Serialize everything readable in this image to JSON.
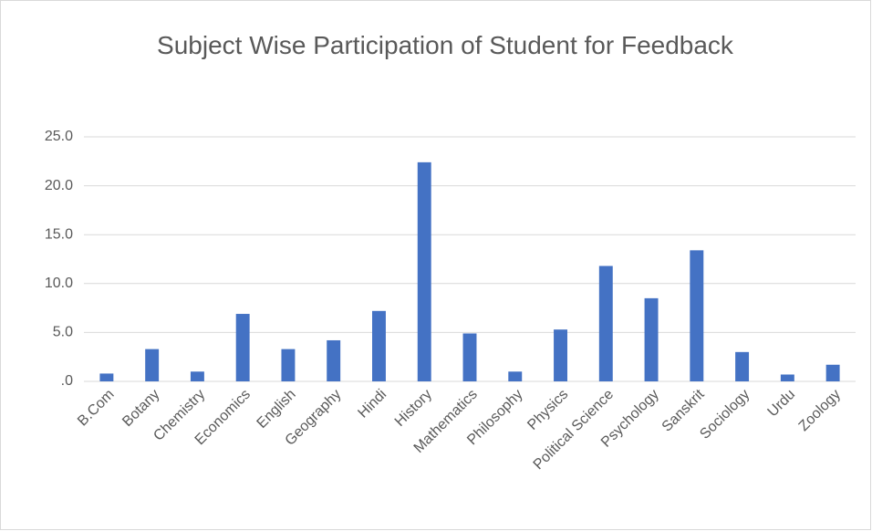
{
  "chart_data": {
    "type": "bar",
    "title": "Subject Wise Participation of Student for Feedback",
    "categories": [
      "B.Com",
      "Botany",
      "Chemistry",
      "Economics",
      "English",
      "Geography",
      "Hindi",
      "History",
      "Mathematics",
      "Philosophy",
      "Physics",
      "Political Science",
      "Psychology",
      "Sanskrit",
      "Sociology",
      "Urdu",
      "Zoology"
    ],
    "values": [
      0.8,
      3.3,
      1.0,
      6.9,
      3.3,
      4.2,
      7.2,
      22.4,
      4.9,
      1.0,
      5.3,
      11.8,
      8.5,
      13.4,
      3.0,
      0.7,
      1.7
    ],
    "color": "#4472c4",
    "ylim": [
      0,
      25
    ],
    "yticks": [
      {
        "value": 0,
        "label": ".0"
      },
      {
        "value": 5,
        "label": "5.0"
      },
      {
        "value": 10,
        "label": "10.0"
      },
      {
        "value": 15,
        "label": "15.0"
      },
      {
        "value": 20,
        "label": "20.0"
      },
      {
        "value": 25,
        "label": "25.0"
      }
    ],
    "grid": true
  }
}
